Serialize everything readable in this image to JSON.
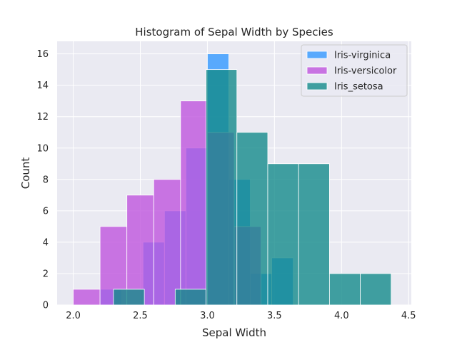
{
  "chart_data": {
    "type": "bar",
    "title": "Histogram of Sepal Width by Species",
    "xlabel": "Sepal Width",
    "ylabel": "Count",
    "xlim": [
      1.88,
      4.52
    ],
    "ylim": [
      0,
      16.8
    ],
    "xticks": [
      2.0,
      2.5,
      3.0,
      3.5,
      4.0,
      4.5
    ],
    "xtick_labels": [
      "2.0",
      "2.5",
      "3.0",
      "3.5",
      "4.0",
      "4.5"
    ],
    "yticks": [
      0,
      2,
      4,
      6,
      8,
      10,
      12,
      14,
      16
    ],
    "ytick_labels": [
      "0",
      "2",
      "4",
      "6",
      "8",
      "10",
      "12",
      "14",
      "16"
    ],
    "grid": true,
    "legend_position": "top-right",
    "series": [
      {
        "name": "Iris-virginica",
        "color": "#3399ff",
        "bin_edges": [
          2.2,
          2.36,
          2.52,
          2.68,
          2.84,
          3.0,
          3.16,
          3.32,
          3.48,
          3.64,
          3.8
        ],
        "counts": [
          1,
          0,
          4,
          6,
          10,
          16,
          8,
          2,
          3,
          0
        ]
      },
      {
        "name": "Iris-versicolor",
        "color": "#bf55dd",
        "bin_edges": [
          2.0,
          2.2,
          2.4,
          2.6,
          2.8,
          3.0,
          3.2,
          3.4
        ],
        "counts": [
          1,
          5,
          7,
          8,
          13,
          11,
          5
        ]
      },
      {
        "name": "Iris_setosa",
        "color": "#148b8b",
        "bin_edges": [
          2.3,
          2.53,
          2.76,
          2.99,
          3.22,
          3.45,
          3.68,
          3.91,
          4.14,
          4.37
        ],
        "counts": [
          1,
          0,
          1,
          15,
          11,
          9,
          9,
          2,
          2
        ]
      }
    ]
  }
}
